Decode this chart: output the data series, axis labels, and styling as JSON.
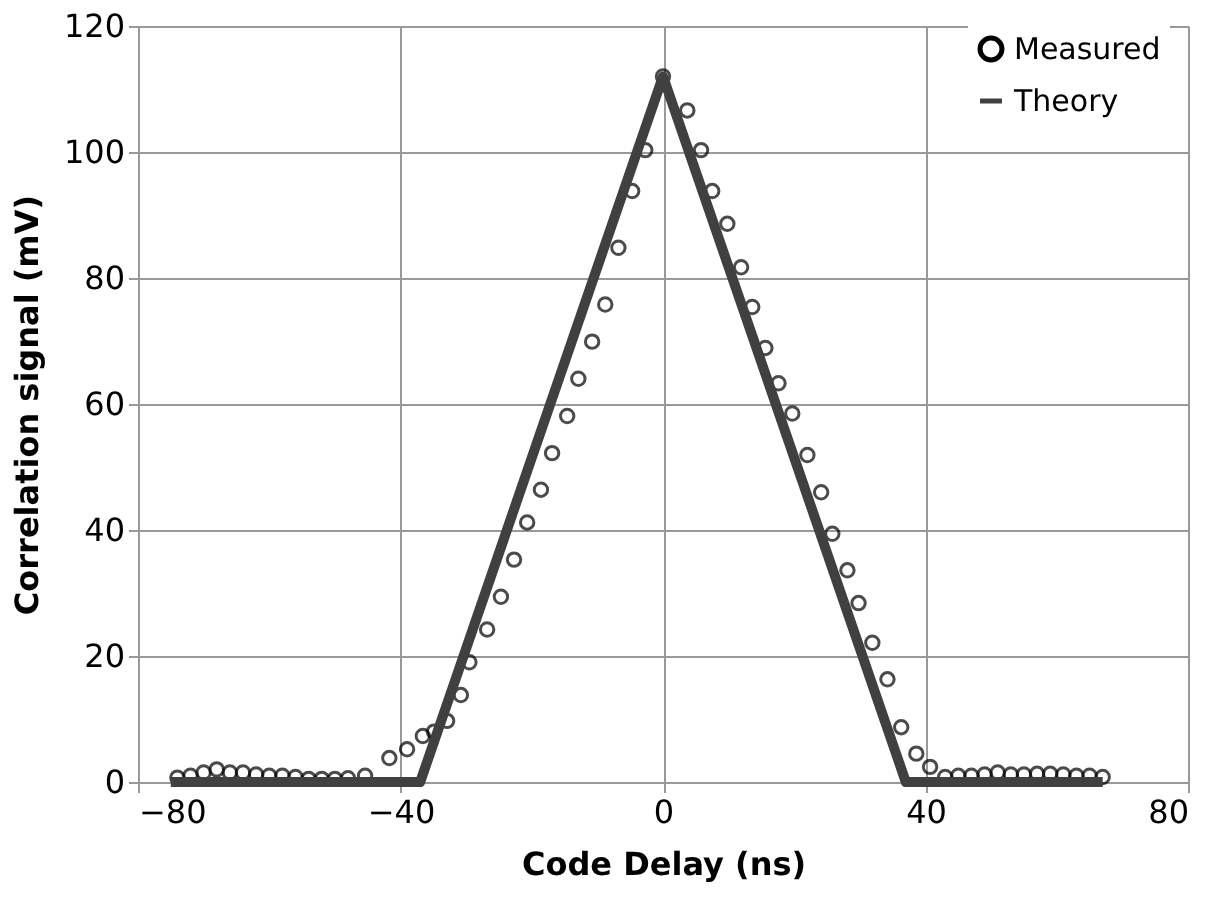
{
  "chart_data": {
    "type": "scatter",
    "xlabel": "Code Delay (ns)",
    "ylabel": "Correlation signal (mV)",
    "xlim": [
      -80,
      80
    ],
    "ylim": [
      0,
      120
    ],
    "xticks": [
      -80,
      -40,
      0,
      40,
      80
    ],
    "yticks": [
      0,
      20,
      40,
      60,
      80,
      100,
      120
    ],
    "grid": true,
    "legend": "top right",
    "series": [
      {
        "name": "Measured",
        "marker": "circle",
        "color": "#000000",
        "x": [
          -74,
          -72,
          -70,
          -68,
          -66,
          -64,
          -62,
          -60,
          -58,
          -56,
          -54,
          -52,
          -50,
          -48,
          -45.4,
          -41.7,
          -39,
          -36.6,
          -34.9,
          -32.9,
          -30.8,
          -29.5,
          -26.8,
          -24.7,
          -22.7,
          -20.7,
          -18.6,
          -16.9,
          -14.6,
          -12.9,
          -10.8,
          -8.8,
          -6.8,
          -4.7,
          -2.7,
          0,
          3.7,
          5.8,
          7.5,
          9.8,
          11.9,
          13.6,
          15.6,
          17.6,
          19.7,
          22,
          24.1,
          25.8,
          28.1,
          29.8,
          31.9,
          34.2,
          36.3,
          38.6,
          40.7,
          43,
          45,
          47,
          49,
          51,
          53,
          55,
          57,
          59,
          61,
          63,
          65,
          67
        ],
        "values": [
          0.7,
          1,
          1.5,
          2,
          1.5,
          1.5,
          1.2,
          1,
          1,
          0.8,
          0.5,
          0.5,
          0.5,
          0.6,
          1,
          3.8,
          5.2,
          7.3,
          8,
          9.7,
          13.8,
          19,
          24.2,
          29.4,
          35.3,
          41.2,
          46.4,
          52.2,
          58.1,
          64,
          69.9,
          75.8,
          84.8,
          93.8,
          100.3,
          112,
          106.6,
          100.3,
          93.8,
          88.6,
          81.7,
          75.4,
          68.9,
          63.3,
          58.5,
          51.9,
          46,
          39.4,
          33.6,
          28.4,
          22.1,
          16.3,
          8.7,
          4.5,
          2.4,
          0.8,
          1,
          1,
          1.2,
          1.5,
          1.2,
          1.2,
          1.3,
          1.3,
          1.2,
          1,
          1,
          0.8
        ]
      },
      {
        "name": "Theory",
        "type": "line",
        "line_style": "solid",
        "color": "#404040",
        "x": [
          -75,
          -37,
          0,
          37,
          67
        ],
        "values": [
          0,
          0,
          112,
          0,
          0
        ]
      }
    ]
  }
}
